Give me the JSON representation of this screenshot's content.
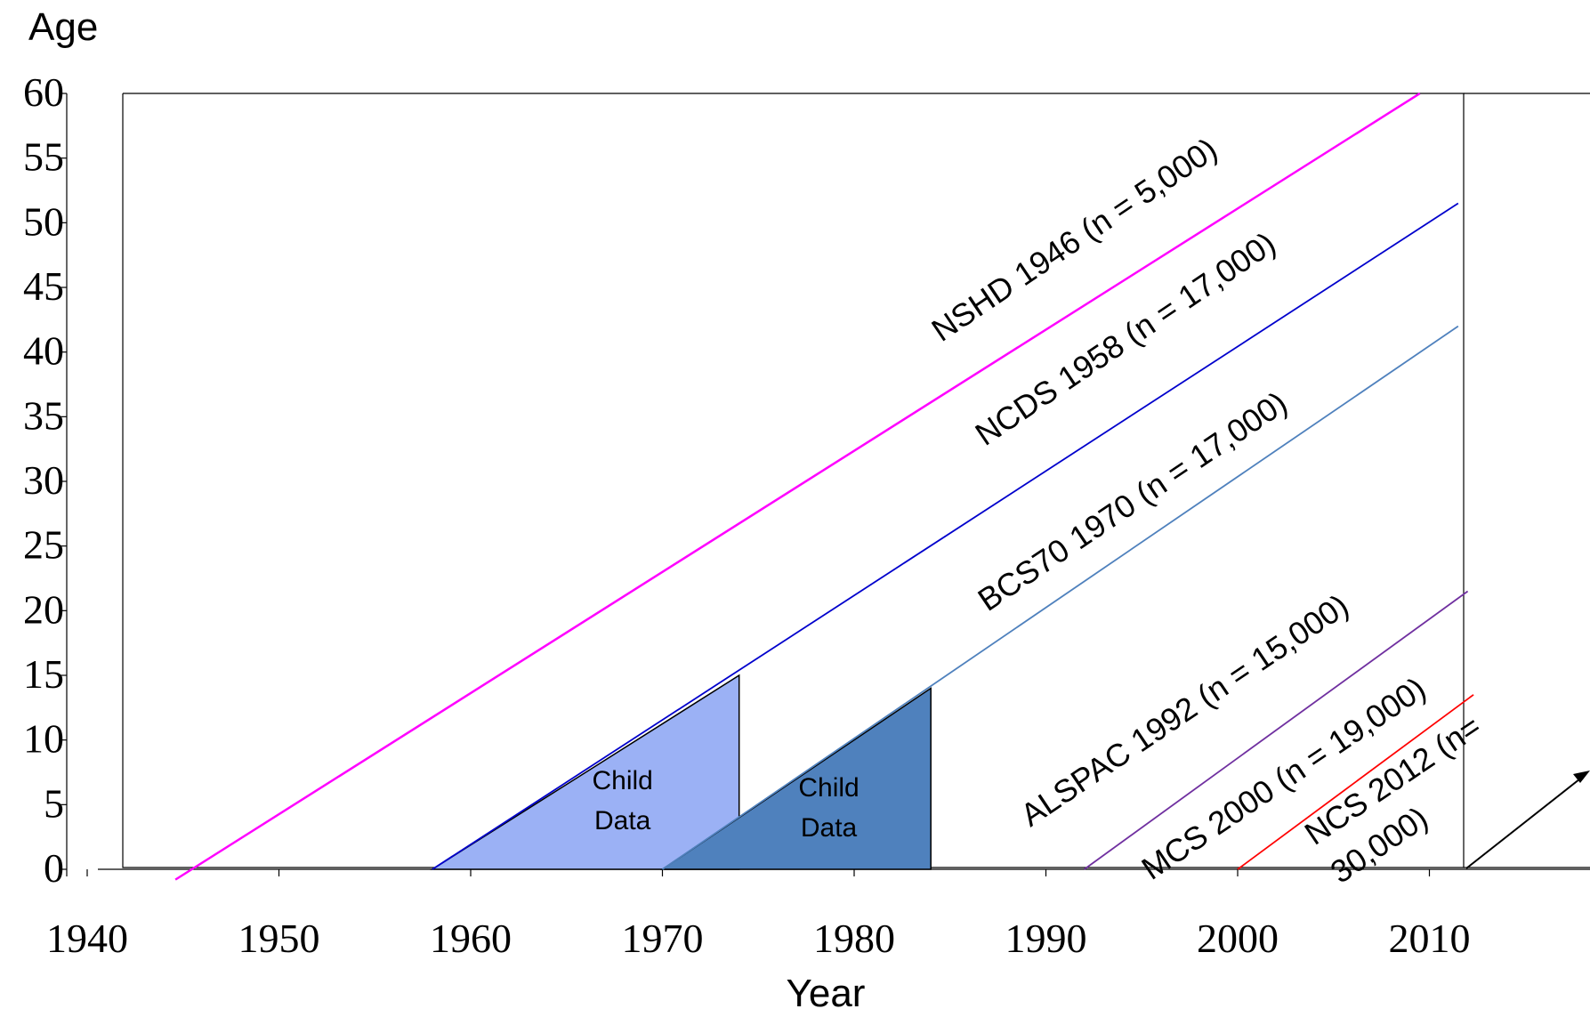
{
  "chart_data": {
    "type": "line",
    "ylabel": "Age",
    "xlabel": "Year",
    "xlim": [
      1940,
      2023
    ],
    "ylim": [
      0,
      60
    ],
    "xticks": [
      1940,
      1950,
      1960,
      1970,
      1980,
      1990,
      2000,
      2010
    ],
    "yticks": [
      0,
      5,
      10,
      15,
      20,
      25,
      30,
      35,
      40,
      45,
      50,
      55,
      60
    ],
    "series": [
      {
        "name": "NSHD 1946 (n = 5,000)",
        "color": "#ff00ff",
        "x": [
          1944.6,
          2009.5
        ],
        "y": [
          -0.8,
          60
        ]
      },
      {
        "name": "NCDS 1958 (n = 17,000)",
        "color": "#0000cc",
        "x": [
          1958,
          2011.5
        ],
        "y": [
          0,
          51.5
        ]
      },
      {
        "name": "BCS70 1970 (n = 17,000)",
        "color": "#4f81bd",
        "x": [
          1970,
          2011.5
        ],
        "y": [
          0,
          42
        ]
      },
      {
        "name": "ALSPAC 1992 (n = 15,000)",
        "color": "#7030a0",
        "x": [
          1992,
          2012
        ],
        "y": [
          0,
          21.5
        ]
      },
      {
        "name": "MCS 2000 (n = 19,000)",
        "color": "#ff0000",
        "x": [
          2000,
          2012.3
        ],
        "y": [
          0,
          13.5
        ]
      }
    ],
    "annotations": [
      {
        "text": "NCS 2012 (n= 30,000)",
        "color": "#000000"
      },
      {
        "text": "Child Data",
        "color": "#9bb1f5",
        "x": [
          1958,
          1974,
          1974
        ],
        "y": [
          0,
          0,
          15
        ]
      },
      {
        "text": "Child Data",
        "color": "#4f81bd",
        "x": [
          1970,
          1984,
          1984
        ],
        "y": [
          0,
          0,
          14
        ]
      }
    ],
    "grid": false,
    "legend": "none"
  }
}
